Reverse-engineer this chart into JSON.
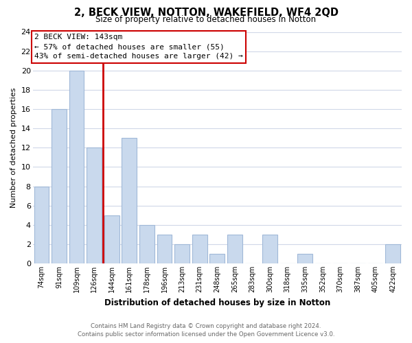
{
  "title": "2, BECK VIEW, NOTTON, WAKEFIELD, WF4 2QD",
  "subtitle": "Size of property relative to detached houses in Notton",
  "xlabel": "Distribution of detached houses by size in Notton",
  "ylabel": "Number of detached properties",
  "bar_labels": [
    "74sqm",
    "91sqm",
    "109sqm",
    "126sqm",
    "144sqm",
    "161sqm",
    "178sqm",
    "196sqm",
    "213sqm",
    "231sqm",
    "248sqm",
    "265sqm",
    "283sqm",
    "300sqm",
    "318sqm",
    "335sqm",
    "352sqm",
    "370sqm",
    "387sqm",
    "405sqm",
    "422sqm"
  ],
  "bar_values": [
    8,
    16,
    20,
    12,
    5,
    13,
    4,
    3,
    2,
    3,
    1,
    3,
    0,
    3,
    0,
    1,
    0,
    0,
    0,
    0,
    2
  ],
  "bar_color": "#c9d9ed",
  "bar_edge_color": "#a0b8d8",
  "vline_color": "#cc0000",
  "annotation_title": "2 BECK VIEW: 143sqm",
  "annotation_line1": "← 57% of detached houses are smaller (55)",
  "annotation_line2": "43% of semi-detached houses are larger (42) →",
  "annotation_box_color": "#ffffff",
  "annotation_box_edge": "#cc0000",
  "ylim": [
    0,
    24
  ],
  "yticks": [
    0,
    2,
    4,
    6,
    8,
    10,
    12,
    14,
    16,
    18,
    20,
    22,
    24
  ],
  "footer_line1": "Contains HM Land Registry data © Crown copyright and database right 2024.",
  "footer_line2": "Contains public sector information licensed under the Open Government Licence v3.0.",
  "background_color": "#ffffff",
  "grid_color": "#d0d8e8"
}
